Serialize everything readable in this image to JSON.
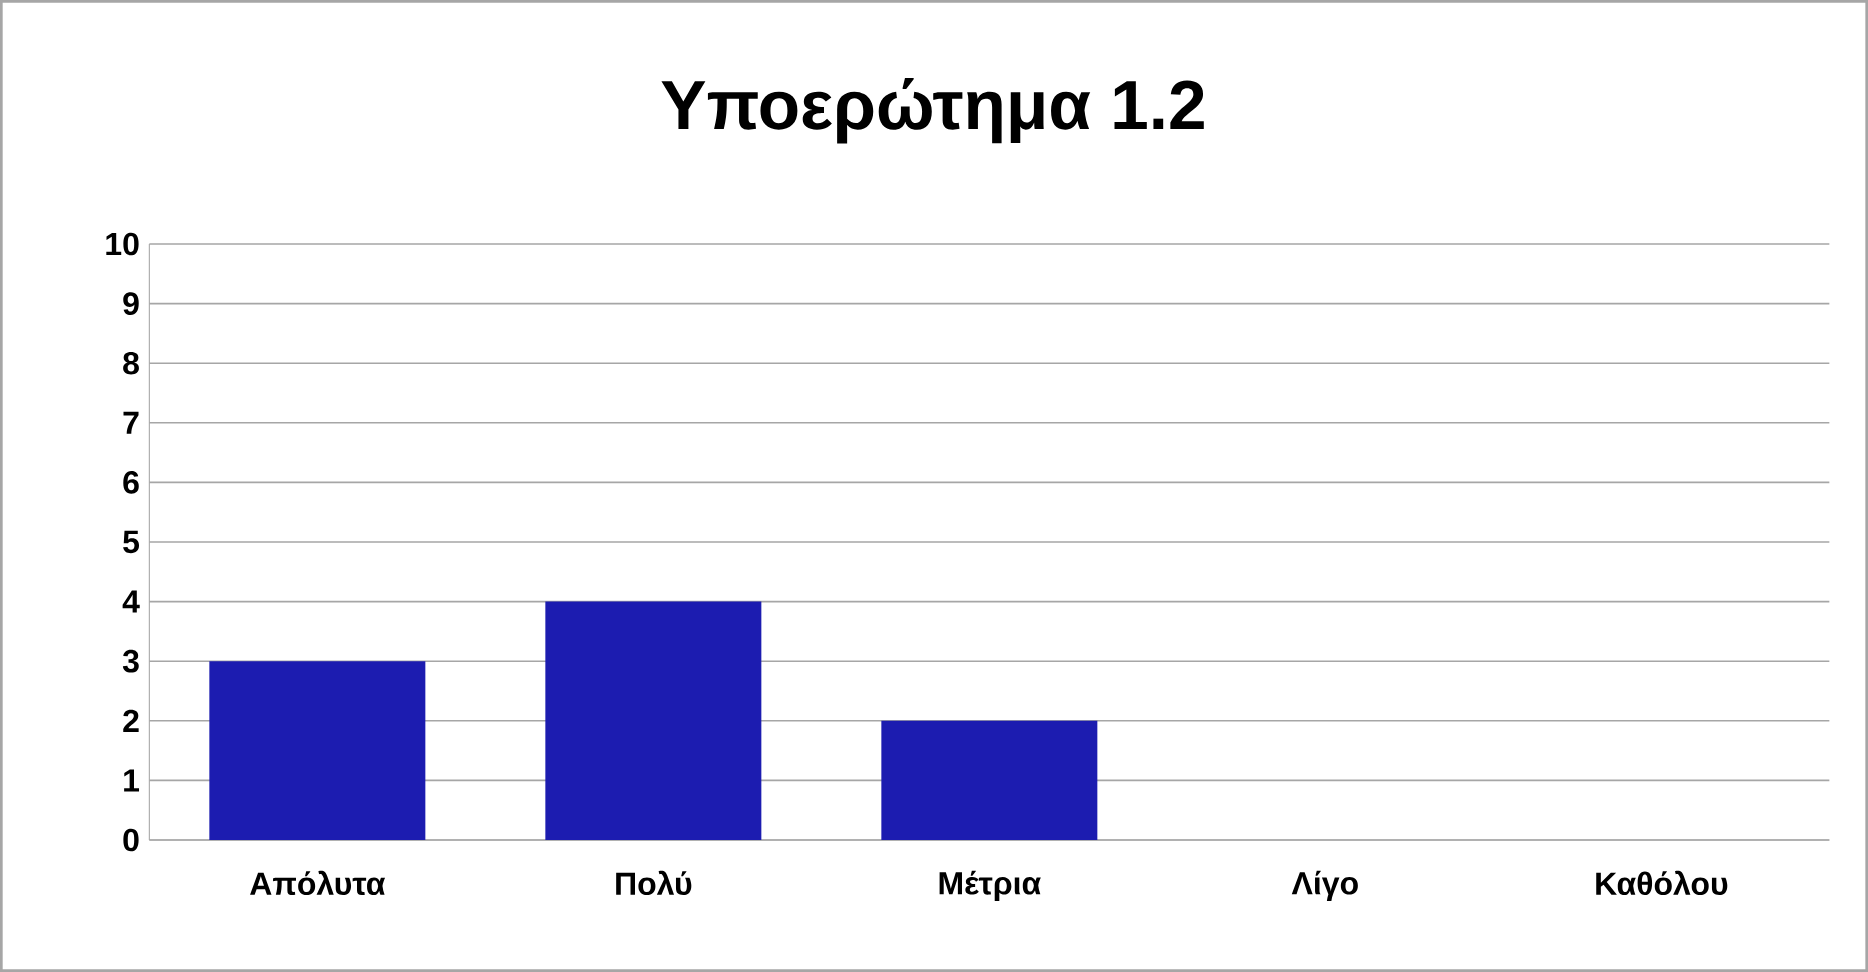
{
  "chart_data": {
    "type": "bar",
    "title": "Υποερώτημα 1.2",
    "categories": [
      "Απόλυτα",
      "Πολύ",
      "Μέτρια",
      "Λίγο",
      "Καθόλου"
    ],
    "values": [
      3,
      4,
      2,
      0,
      0
    ],
    "color": "#1c1cb0",
    "ylim": [
      0,
      10
    ],
    "yticks": [
      0,
      1,
      2,
      3,
      4,
      5,
      6,
      7,
      8,
      9,
      10
    ],
    "grid": "y"
  }
}
